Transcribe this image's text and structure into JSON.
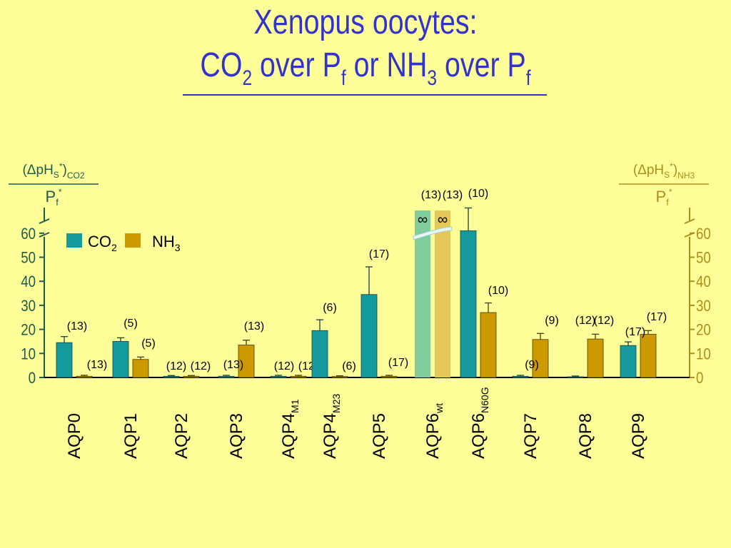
{
  "title": {
    "line1": "Xenopus oocytes:",
    "line2_a": "CO",
    "line2_a_sub": "2",
    "line2_b": " over P",
    "line2_b_sub": "f",
    "line2_c": " or NH",
    "line2_c_sub": "3",
    "line2_d": " over P",
    "line2_d_sub": "f"
  },
  "colors": {
    "background": "#ffff99",
    "title": "#3333cc",
    "co2": "#14999c",
    "nh3": "#cc9900",
    "co2_light": "#7fcc9c",
    "nh3_light": "#e5c85a",
    "left_axis": "#1d5c4d",
    "right_axis": "#b08c1a"
  },
  "chart_data": {
    "type": "bar",
    "y_left_label": {
      "main": "(ΔpH",
      "sub1": "S",
      "sup1": "*",
      "close": ")",
      "sub2": "CO2",
      "denominator": "P",
      "den_sub": "f",
      "den_sup": "*"
    },
    "y_right_label": {
      "main": "(ΔpH",
      "sub1": "S",
      "sup1": "*",
      "close": ")",
      "sub2": "NH3",
      "denominator": "P",
      "den_sub": "f",
      "den_sup": "*"
    },
    "ylim": [
      0,
      60
    ],
    "yticks": [
      0,
      10,
      20,
      30,
      40,
      50,
      60
    ],
    "legend": {
      "position": "top-left",
      "co2": "CO",
      "co2_sub": "2",
      "nh3": "NH",
      "nh3_sub": "3"
    },
    "categories": [
      {
        "name": "AQP0",
        "sub": ""
      },
      {
        "name": "AQP1",
        "sub": ""
      },
      {
        "name": "AQP2",
        "sub": ""
      },
      {
        "name": "AQP3",
        "sub": ""
      },
      {
        "name": "AQP4",
        "sub": "M1"
      },
      {
        "name": "AQP4",
        "sub": "M23"
      },
      {
        "name": "AQP5",
        "sub": ""
      },
      {
        "name": "AQP6",
        "sub": "wt"
      },
      {
        "name": "AQP6",
        "sub": "N60G"
      },
      {
        "name": "AQP7",
        "sub": ""
      },
      {
        "name": "AQP8",
        "sub": ""
      },
      {
        "name": "AQP9",
        "sub": ""
      }
    ],
    "series": [
      {
        "name": "CO2",
        "values": [
          14.5,
          15,
          0.5,
          0.5,
          0.5,
          19.5,
          34.5,
          "∞",
          61,
          0.5,
          0.3,
          13.3
        ],
        "err": [
          2.5,
          1.5,
          0.3,
          0.4,
          0.4,
          4.5,
          11.5,
          0,
          9.5,
          0.4,
          0.3,
          1.5
        ],
        "n": [
          "(13)",
          "(5)",
          "(12)",
          "(13)",
          "(12)",
          "(6)",
          "(17)",
          "(13)",
          "(10)",
          "(9)",
          "(12)",
          "(17)"
        ]
      },
      {
        "name": "NH3",
        "values": [
          0.5,
          7.5,
          0.5,
          13.5,
          0.5,
          0.4,
          0.5,
          "∞",
          27,
          15.8,
          16,
          18
        ],
        "err": [
          0.4,
          1,
          0.3,
          2,
          0.4,
          0.3,
          0.4,
          0,
          4,
          2.5,
          2,
          1.5
        ],
        "n": [
          "(13)",
          "(5)",
          "(12)",
          "(13)",
          "(12)",
          "(6)",
          "(17)",
          "(13)",
          "(10)",
          "(9)",
          "(12)",
          "(17)"
        ]
      }
    ]
  }
}
